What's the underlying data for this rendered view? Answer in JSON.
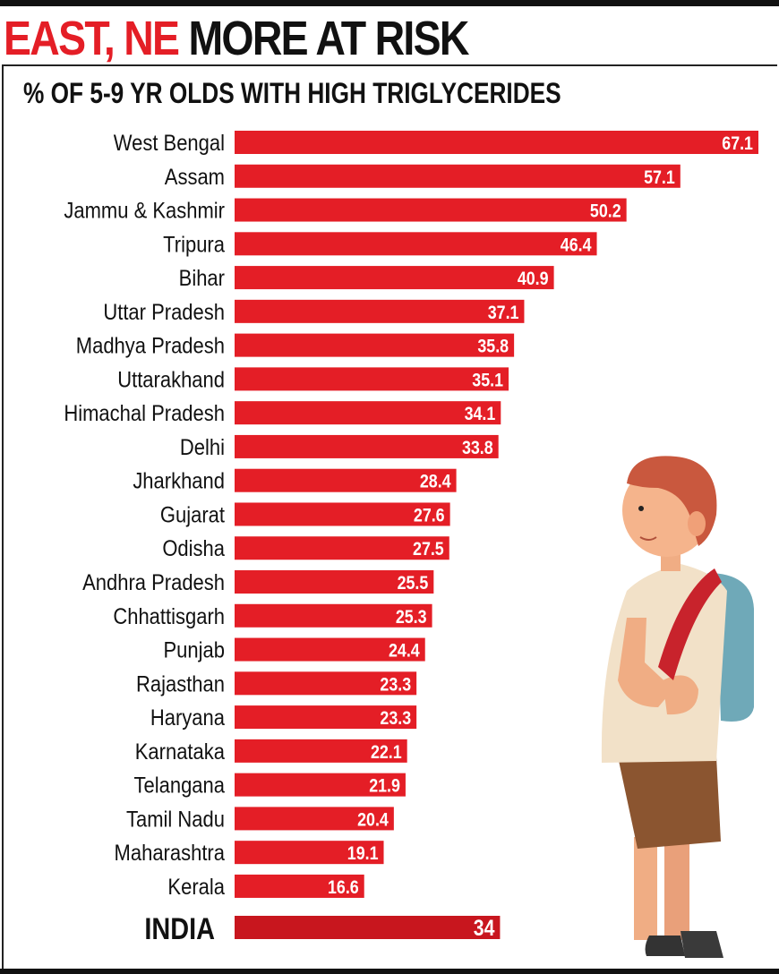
{
  "headline": {
    "red": "EAST, NE",
    "black": "MORE AT RISK"
  },
  "colors": {
    "bar": "#e41e26",
    "india_bar": "#c8161e",
    "headline_red": "#e41e26"
  },
  "chart_data": {
    "type": "bar",
    "orientation": "horizontal",
    "title": "% OF 5-9 YR OLDS WITH HIGH TRIGLYCERIDES",
    "xlim": [
      0,
      67.1
    ],
    "grid": false,
    "categories": [
      "West Bengal",
      "Assam",
      "Jammu & Kashmir",
      "Tripura",
      "Bihar",
      "Uttar Pradesh",
      "Madhya Pradesh",
      "Uttarakhand",
      "Himachal Pradesh",
      "Delhi",
      "Jharkhand",
      "Gujarat",
      "Odisha",
      "Andhra Pradesh",
      "Chhattisgarh",
      "Punjab",
      "Rajasthan",
      "Haryana",
      "Karnataka",
      "Telangana",
      "Tamil Nadu",
      "Maharashtra",
      "Kerala"
    ],
    "values": [
      67.1,
      57.1,
      50.2,
      46.4,
      40.9,
      37.1,
      35.8,
      35.1,
      34.1,
      33.8,
      28.4,
      27.6,
      27.5,
      25.5,
      25.3,
      24.4,
      23.3,
      23.3,
      22.1,
      21.9,
      20.4,
      19.1,
      16.6
    ],
    "value_labels": [
      "67.1",
      "57.1",
      "50.2",
      "46.4",
      "40.9",
      "37.1",
      "35.8",
      "35.1",
      "34.1",
      "33.8",
      "28.4",
      "27.6",
      "27.5",
      "25.5",
      "25.3",
      "24.4",
      "23.3",
      "23.3",
      "22.1",
      "21.9",
      "20.4",
      "19.1",
      "16.6"
    ],
    "total": {
      "label": "INDIA",
      "value": 34,
      "value_label": "34"
    }
  },
  "illustration": "cartoon-boy-with-backpack"
}
